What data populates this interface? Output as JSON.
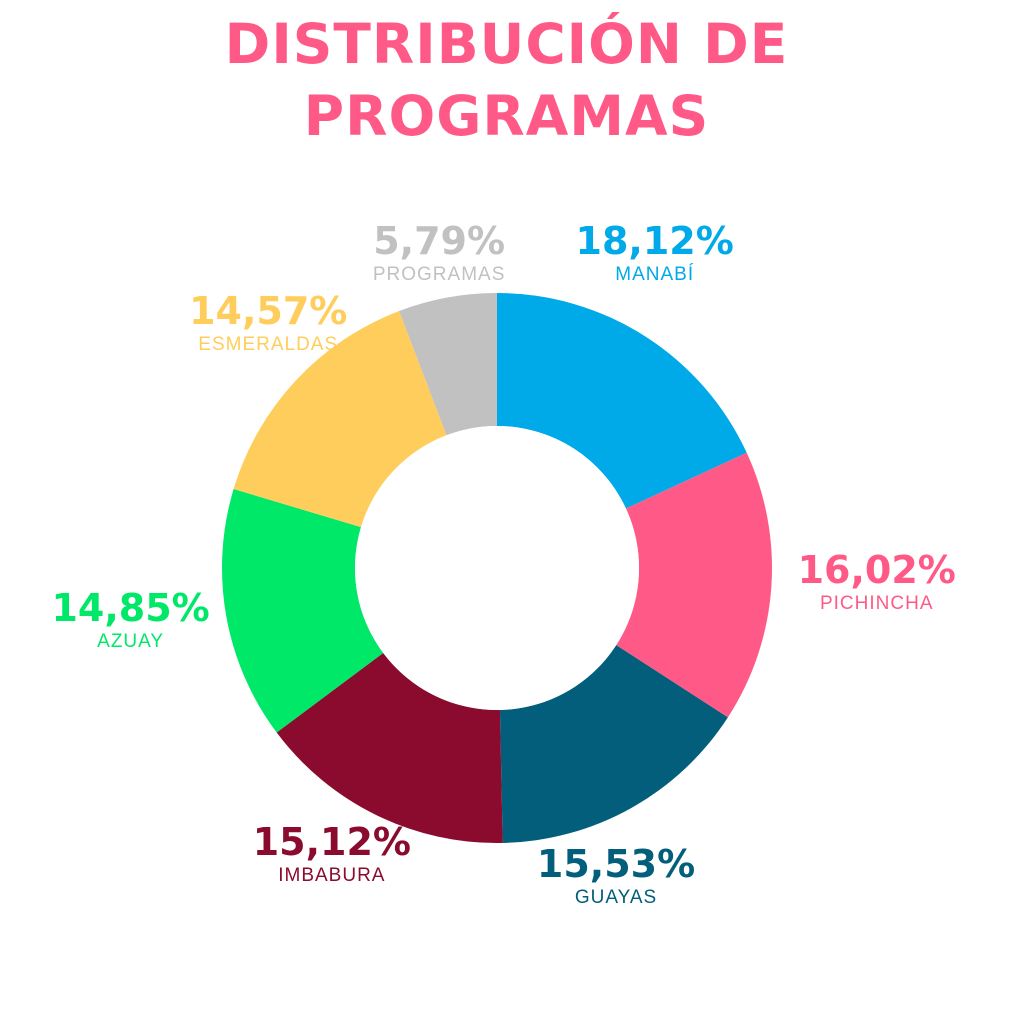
{
  "title": {
    "line1": "DISTRIBUCIÓN DE",
    "line2": "PROGRAMAS"
  },
  "colors": {
    "title": "#ff5a87",
    "hole": "#ffffff"
  },
  "chart_data": {
    "type": "pie",
    "title": "DISTRIBUCIÓN DE PROGRAMAS",
    "donut": true,
    "categories": [
      "MANABÍ",
      "PICHINCHA",
      "GUAYAS",
      "IMBABURA",
      "AZUAY",
      "ESMERALDAS",
      "PROGRAMAS"
    ],
    "values": [
      18.12,
      16.02,
      15.53,
      15.12,
      14.85,
      14.57,
      5.79
    ],
    "labels": [
      "18,12%",
      "16,02%",
      "15,53%",
      "15,12%",
      "14,85%",
      "14,57%",
      "5,79%"
    ],
    "colors": [
      "#00a9e8",
      "#ff5a87",
      "#035e7b",
      "#8b0b2f",
      "#00e868",
      "#ffcd5c",
      "#c1c1c1"
    ]
  }
}
